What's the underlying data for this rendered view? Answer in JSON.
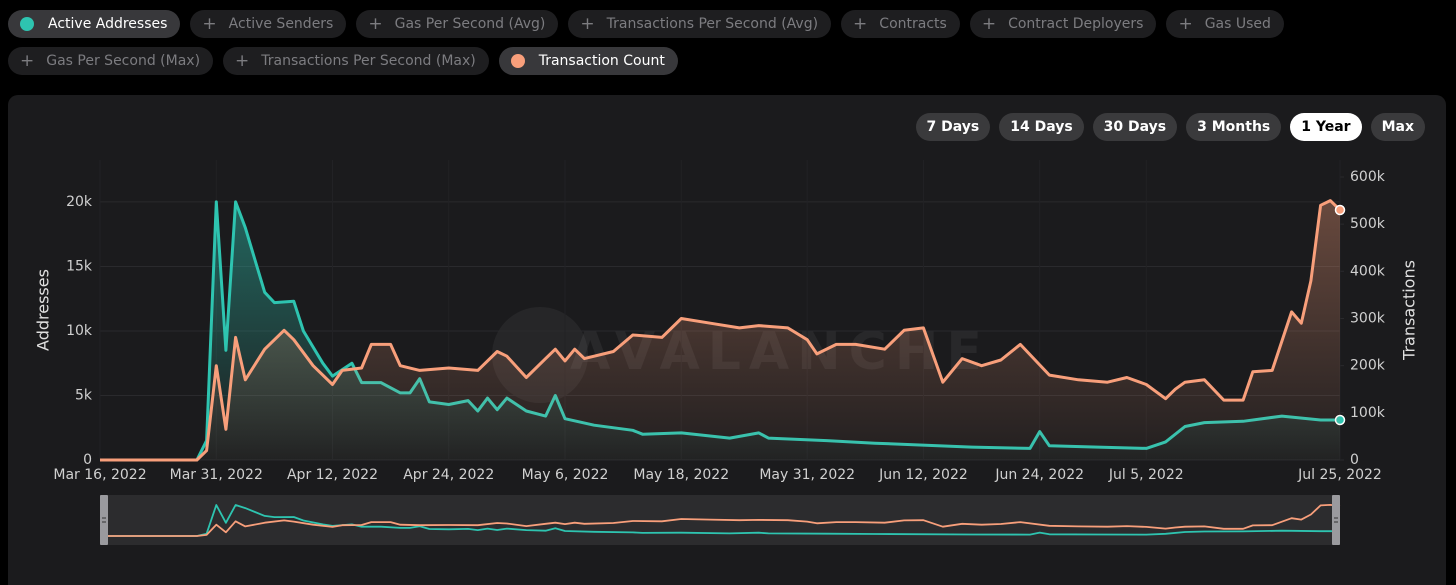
{
  "metrics": [
    {
      "label": "Active Addresses",
      "active": true,
      "color": "#2ec4b0"
    },
    {
      "label": "Active Senders",
      "active": false
    },
    {
      "label": "Gas Per Second (Avg)",
      "active": false
    },
    {
      "label": "Transactions Per Second (Avg)",
      "active": false
    },
    {
      "label": "Contracts",
      "active": false
    },
    {
      "label": "Contract Deployers",
      "active": false
    },
    {
      "label": "Gas Used",
      "active": false
    },
    {
      "label": "Gas Per Second (Max)",
      "active": false
    },
    {
      "label": "Transactions Per Second (Max)",
      "active": false
    },
    {
      "label": "Transaction Count",
      "active": true,
      "color": "#f89f7b"
    }
  ],
  "ranges": [
    {
      "label": "7 Days"
    },
    {
      "label": "14 Days"
    },
    {
      "label": "30 Days"
    },
    {
      "label": "3 Months"
    },
    {
      "label": "1 Year",
      "selected": true
    },
    {
      "label": "Max"
    }
  ],
  "chart_data": {
    "type": "line",
    "watermark": "AVALANCHE",
    "y_label": "Addresses",
    "y2_label": "Transactions",
    "xlim": [
      "2022-03-19",
      "2022-07-25"
    ],
    "xticks": [
      {
        "value": "2022-03-16",
        "label": "Mar 16, 2022"
      },
      {
        "value": "2022-03-31",
        "label": "Mar 31, 2022"
      },
      {
        "value": "2022-04-12",
        "label": "Apr 12, 2022"
      },
      {
        "value": "2022-04-24",
        "label": "Apr 24, 2022"
      },
      {
        "value": "2022-05-06",
        "label": "May 6, 2022"
      },
      {
        "value": "2022-05-18",
        "label": "May 18, 2022"
      },
      {
        "value": "2022-05-31",
        "label": "May 31, 2022"
      },
      {
        "value": "2022-06-12",
        "label": "Jun 12, 2022"
      },
      {
        "value": "2022-06-24",
        "label": "Jun 24, 2022"
      },
      {
        "value": "2022-07-05",
        "label": "Jul 5, 2022"
      },
      {
        "value": "2022-07-25",
        "label": "Jul 25, 2022"
      }
    ],
    "ylim": [
      0,
      23250
    ],
    "yticks": [
      0,
      {
        "value": 5000,
        "label": "5k"
      },
      {
        "value": 10000,
        "label": "10k"
      },
      {
        "value": 15000,
        "label": "15k"
      },
      {
        "value": 20000,
        "label": "20k"
      }
    ],
    "y2lim": [
      0,
      636000
    ],
    "y2ticks": [
      0,
      {
        "value": 100000,
        "label": "100k"
      },
      {
        "value": 200000,
        "label": "200k"
      },
      {
        "value": 300000,
        "label": "300k"
      },
      {
        "value": 400000,
        "label": "400k"
      },
      {
        "value": 500000,
        "label": "500k"
      },
      {
        "value": 600000,
        "label": "600k"
      }
    ],
    "series": [
      {
        "color": "#2ec4b0",
        "x": [
          "2022-03-19",
          "2022-03-29",
          "2022-03-30",
          "2022-03-31",
          "2022-04-01",
          "2022-04-02",
          "2022-04-03",
          "2022-04-04",
          "2022-04-05",
          "2022-04-06",
          "2022-04-08",
          "2022-04-09",
          "2022-04-11",
          "2022-04-12",
          "2022-04-14",
          "2022-04-15",
          "2022-04-17",
          "2022-04-19",
          "2022-04-20",
          "2022-04-21",
          "2022-04-22",
          "2022-04-24",
          "2022-04-26",
          "2022-04-27",
          "2022-04-28",
          "2022-04-29",
          "2022-04-30",
          "2022-05-02",
          "2022-05-04",
          "2022-05-05",
          "2022-05-06",
          "2022-05-09",
          "2022-05-13",
          "2022-05-14",
          "2022-05-18",
          "2022-05-23",
          "2022-05-26",
          "2022-05-27",
          "2022-06-02",
          "2022-06-07",
          "2022-06-17",
          "2022-06-23",
          "2022-06-24",
          "2022-06-25",
          "2022-06-30",
          "2022-07-05",
          "2022-07-07",
          "2022-07-09",
          "2022-07-11",
          "2022-07-15",
          "2022-07-19",
          "2022-07-23",
          "2022-07-25"
        ],
        "values": [
          0,
          0,
          1500,
          20000,
          8500,
          20000,
          18000,
          15500,
          13000,
          12200,
          12300,
          10000,
          7500,
          6500,
          7500,
          6000,
          6000,
          5200,
          5200,
          6300,
          4500,
          4300,
          4600,
          3800,
          4800,
          3900,
          4800,
          3800,
          3400,
          5000,
          3200,
          2700,
          2300,
          2000,
          2100,
          1700,
          2100,
          1700,
          1500,
          1300,
          1000,
          900,
          2200,
          1100,
          1000,
          900,
          1400,
          2600,
          2900,
          3000,
          3400,
          3100,
          3100
        ]
      },
      {
        "color": "#f89f7b",
        "axis": "y2",
        "x": [
          "2022-03-19",
          "2022-03-29",
          "2022-03-30",
          "2022-03-31",
          "2022-04-01",
          "2022-04-02",
          "2022-04-03",
          "2022-04-05",
          "2022-04-07",
          "2022-04-08",
          "2022-04-10",
          "2022-04-12",
          "2022-04-13",
          "2022-04-15",
          "2022-04-16",
          "2022-04-18",
          "2022-04-19",
          "2022-04-21",
          "2022-04-24",
          "2022-04-27",
          "2022-04-29",
          "2022-04-30",
          "2022-05-02",
          "2022-05-04",
          "2022-05-05",
          "2022-05-06",
          "2022-05-07",
          "2022-05-08",
          "2022-05-11",
          "2022-05-13",
          "2022-05-16",
          "2022-05-18",
          "2022-05-21",
          "2022-05-24",
          "2022-05-26",
          "2022-05-29",
          "2022-05-31",
          "2022-06-01",
          "2022-06-03",
          "2022-06-05",
          "2022-06-08",
          "2022-06-10",
          "2022-06-12",
          "2022-06-14",
          "2022-06-16",
          "2022-06-18",
          "2022-06-20",
          "2022-06-22",
          "2022-06-25",
          "2022-06-28",
          "2022-07-01",
          "2022-07-03",
          "2022-07-05",
          "2022-07-07",
          "2022-07-08",
          "2022-07-09",
          "2022-07-11",
          "2022-07-13",
          "2022-07-15",
          "2022-07-16",
          "2022-07-18",
          "2022-07-20",
          "2022-07-21",
          "2022-07-22",
          "2022-07-23",
          "2022-07-24",
          "2022-07-25"
        ],
        "values": [
          0,
          0,
          20000,
          200000,
          65000,
          260000,
          170000,
          235000,
          275000,
          255000,
          200000,
          160000,
          190000,
          195000,
          245000,
          245000,
          200000,
          190000,
          195000,
          190000,
          230000,
          220000,
          175000,
          215000,
          235000,
          210000,
          235000,
          215000,
          230000,
          265000,
          260000,
          300000,
          290000,
          280000,
          285000,
          280000,
          255000,
          225000,
          245000,
          245000,
          235000,
          275000,
          280000,
          165000,
          215000,
          200000,
          212000,
          245000,
          180000,
          170000,
          165000,
          175000,
          160000,
          130000,
          150000,
          165000,
          170000,
          127000,
          127000,
          187000,
          190000,
          314000,
          290000,
          380000,
          540000,
          550000,
          530000
        ]
      }
    ]
  }
}
